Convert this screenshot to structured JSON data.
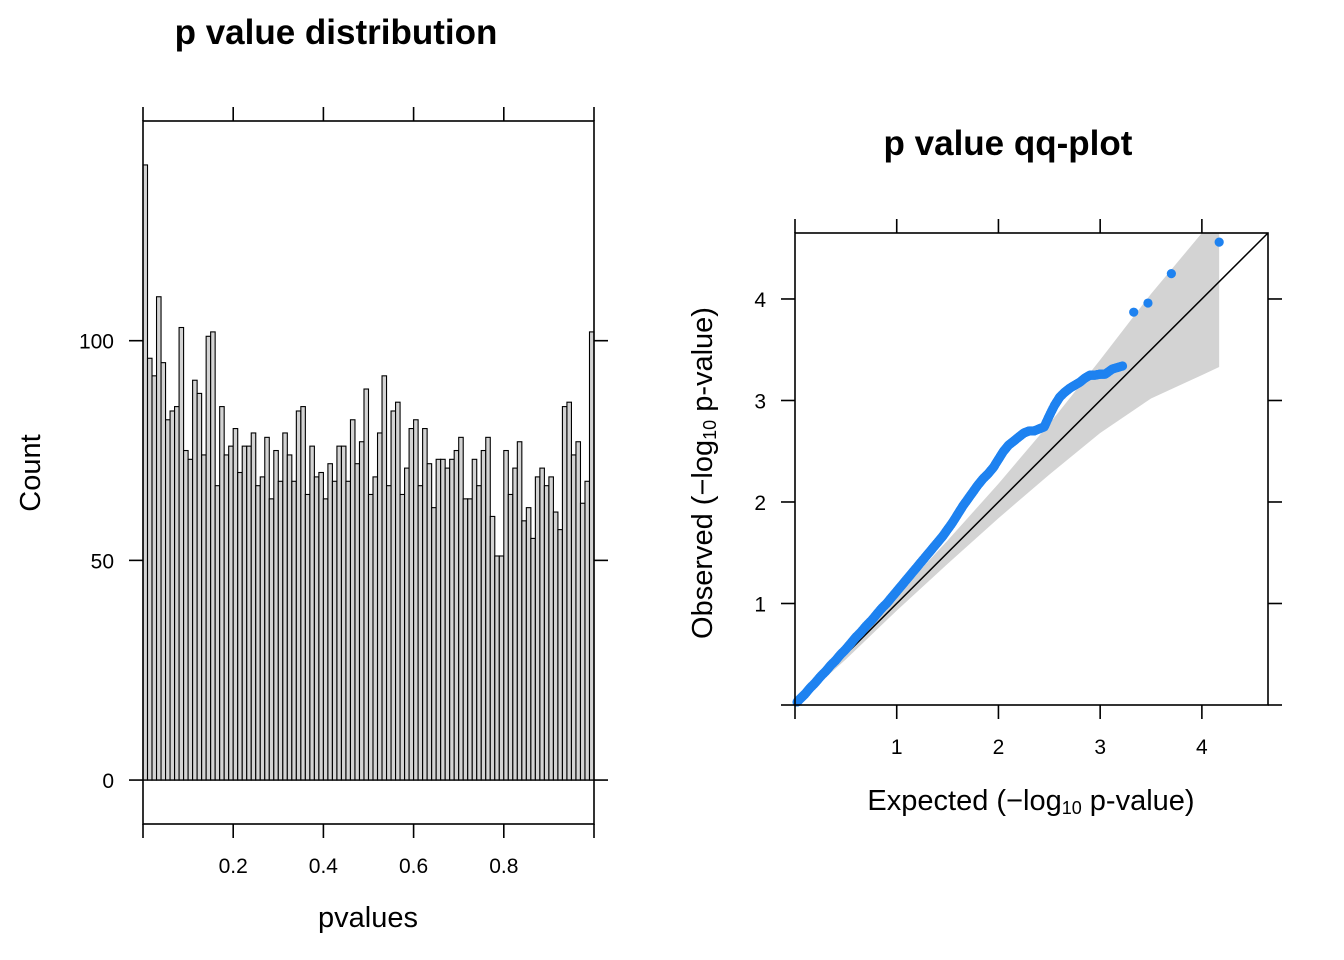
{
  "chart_data": [
    {
      "type": "bar",
      "title": "p value distribution",
      "xlabel": "pvalues",
      "ylabel": "Count",
      "bin_width": 0.01,
      "xlim": [
        0,
        1
      ],
      "ylim": [
        -10,
        150
      ],
      "x_ticks": [
        0.2,
        0.4,
        0.6,
        0.8
      ],
      "x_tick_labels": [
        "0.2",
        "0.4",
        "0.6",
        "0.8"
      ],
      "y_ticks": [
        0,
        50,
        100
      ],
      "y_tick_labels": [
        "0",
        "50",
        "100"
      ],
      "values": [
        140,
        96,
        92,
        110,
        95,
        82,
        84,
        85,
        103,
        75,
        73,
        91,
        88,
        74,
        101,
        102,
        67,
        85,
        74,
        76,
        80,
        70,
        76,
        76,
        79,
        67,
        69,
        78,
        64,
        75,
        68,
        79,
        74,
        68,
        84,
        85,
        65,
        76,
        69,
        70,
        64,
        72,
        68,
        76,
        76,
        68,
        82,
        72,
        77,
        89,
        65,
        69,
        79,
        92,
        67,
        84,
        86,
        65,
        71,
        80,
        82,
        67,
        80,
        72,
        62,
        73,
        73,
        71,
        73,
        75,
        78,
        64,
        64,
        73,
        67,
        75,
        78,
        60,
        51,
        51,
        75,
        65,
        71,
        77,
        59,
        62,
        55,
        69,
        71,
        67,
        69,
        61,
        57,
        85,
        86,
        74,
        77,
        63,
        68,
        102
      ]
    },
    {
      "type": "scatter",
      "title": "p value qq-plot",
      "xlabel_parts": [
        "Expected (",
        "−",
        "log",
        "10",
        " p-value)"
      ],
      "ylabel_parts": [
        "Observed (",
        "−",
        "log",
        "10",
        " p-value)"
      ],
      "xlim": [
        0,
        4.65
      ],
      "ylim": [
        0,
        4.65
      ],
      "x_ticks": [
        1,
        2,
        3,
        4
      ],
      "x_tick_labels": [
        "1",
        "2",
        "3",
        "4"
      ],
      "y_ticks": [
        1,
        2,
        3,
        4
      ],
      "y_tick_labels": [
        "1",
        "2",
        "3",
        "4"
      ],
      "reference_line": {
        "from": [
          0,
          0
        ],
        "to": [
          4.65,
          4.65
        ]
      },
      "points": [
        [
          0.02,
          0.03
        ],
        [
          0.06,
          0.07
        ],
        [
          0.1,
          0.11
        ],
        [
          0.15,
          0.17
        ],
        [
          0.2,
          0.22
        ],
        [
          0.25,
          0.28
        ],
        [
          0.3,
          0.33
        ],
        [
          0.35,
          0.39
        ],
        [
          0.4,
          0.44
        ],
        [
          0.45,
          0.5
        ],
        [
          0.5,
          0.55
        ],
        [
          0.55,
          0.61
        ],
        [
          0.6,
          0.67
        ],
        [
          0.65,
          0.72
        ],
        [
          0.7,
          0.78
        ],
        [
          0.75,
          0.83
        ],
        [
          0.8,
          0.89
        ],
        [
          0.85,
          0.95
        ],
        [
          0.9,
          1.0
        ],
        [
          0.95,
          1.06
        ],
        [
          1.0,
          1.12
        ],
        [
          1.05,
          1.18
        ],
        [
          1.1,
          1.24
        ],
        [
          1.15,
          1.3
        ],
        [
          1.2,
          1.36
        ],
        [
          1.25,
          1.42
        ],
        [
          1.3,
          1.48
        ],
        [
          1.35,
          1.54
        ],
        [
          1.4,
          1.6
        ],
        [
          1.45,
          1.66
        ],
        [
          1.5,
          1.73
        ],
        [
          1.55,
          1.8
        ],
        [
          1.6,
          1.88
        ],
        [
          1.65,
          1.96
        ],
        [
          1.7,
          2.03
        ],
        [
          1.75,
          2.1
        ],
        [
          1.8,
          2.17
        ],
        [
          1.85,
          2.23
        ],
        [
          1.9,
          2.28
        ],
        [
          1.95,
          2.34
        ],
        [
          2.0,
          2.42
        ],
        [
          2.05,
          2.5
        ],
        [
          2.1,
          2.56
        ],
        [
          2.15,
          2.6
        ],
        [
          2.2,
          2.64
        ],
        [
          2.25,
          2.68
        ],
        [
          2.3,
          2.7
        ],
        [
          2.35,
          2.7
        ],
        [
          2.4,
          2.72
        ],
        [
          2.45,
          2.74
        ],
        [
          2.5,
          2.85
        ],
        [
          2.55,
          2.95
        ],
        [
          2.6,
          3.03
        ],
        [
          2.65,
          3.08
        ],
        [
          2.7,
          3.12
        ],
        [
          2.75,
          3.15
        ],
        [
          2.8,
          3.18
        ],
        [
          2.85,
          3.22
        ],
        [
          2.9,
          3.25
        ],
        [
          2.95,
          3.25
        ],
        [
          3.0,
          3.26
        ],
        [
          3.05,
          3.26
        ],
        [
          3.12,
          3.31
        ],
        [
          3.22,
          3.34
        ],
        [
          3.33,
          3.87
        ],
        [
          3.47,
          3.96
        ],
        [
          3.7,
          4.25
        ],
        [
          4.17,
          4.56
        ]
      ],
      "confidence_band": {
        "x": [
          0.0,
          0.5,
          1.0,
          1.5,
          2.0,
          2.5,
          3.0,
          3.5,
          4.0,
          4.17
        ],
        "lower": [
          0.0,
          0.45,
          0.93,
          1.39,
          1.84,
          2.27,
          2.68,
          3.02,
          3.25,
          3.33
        ],
        "upper": [
          0.05,
          0.56,
          1.08,
          1.62,
          2.18,
          2.77,
          3.4,
          4.05,
          4.65,
          4.65
        ]
      },
      "point_color": "#1e82f0",
      "band_color": "#d3d3d3"
    }
  ]
}
